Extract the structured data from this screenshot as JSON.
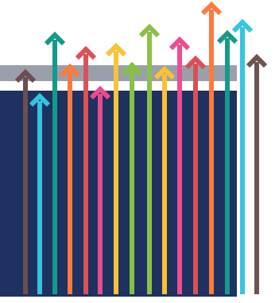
{
  "illustration": {
    "name": "rising-arrows-illustration",
    "panel_colors": {
      "navy": "#1e3160",
      "gray_band": "#9aa0ab",
      "white_gap": "#ffffff"
    },
    "arrows": [
      {
        "name": "arrow-brown-1",
        "color": "#6b4e4e"
      },
      {
        "name": "arrow-cyan-1",
        "color": "#35c3de"
      },
      {
        "name": "arrow-teal-1",
        "color": "#139a8c"
      },
      {
        "name": "arrow-orange-1",
        "color": "#fd7a3f"
      },
      {
        "name": "arrow-red-1",
        "color": "#da5256"
      },
      {
        "name": "arrow-pink-1",
        "color": "#ea4b8d"
      },
      {
        "name": "arrow-yellow-1",
        "color": "#f8c33a"
      },
      {
        "name": "arrow-green-1",
        "color": "#84c342"
      },
      {
        "name": "arrow-green-2",
        "color": "#8ac14a"
      },
      {
        "name": "arrow-yellow-2",
        "color": "#fbc132"
      },
      {
        "name": "arrow-pink-2",
        "color": "#ec4e8f"
      },
      {
        "name": "arrow-red-2",
        "color": "#d95054"
      },
      {
        "name": "arrow-orange-2",
        "color": "#ff7a3d"
      },
      {
        "name": "arrow-teal-2",
        "color": "#169a8b"
      },
      {
        "name": "arrow-cyan-2",
        "color": "#34c5e0"
      },
      {
        "name": "arrow-brown-2",
        "color": "#6e5353"
      }
    ]
  }
}
